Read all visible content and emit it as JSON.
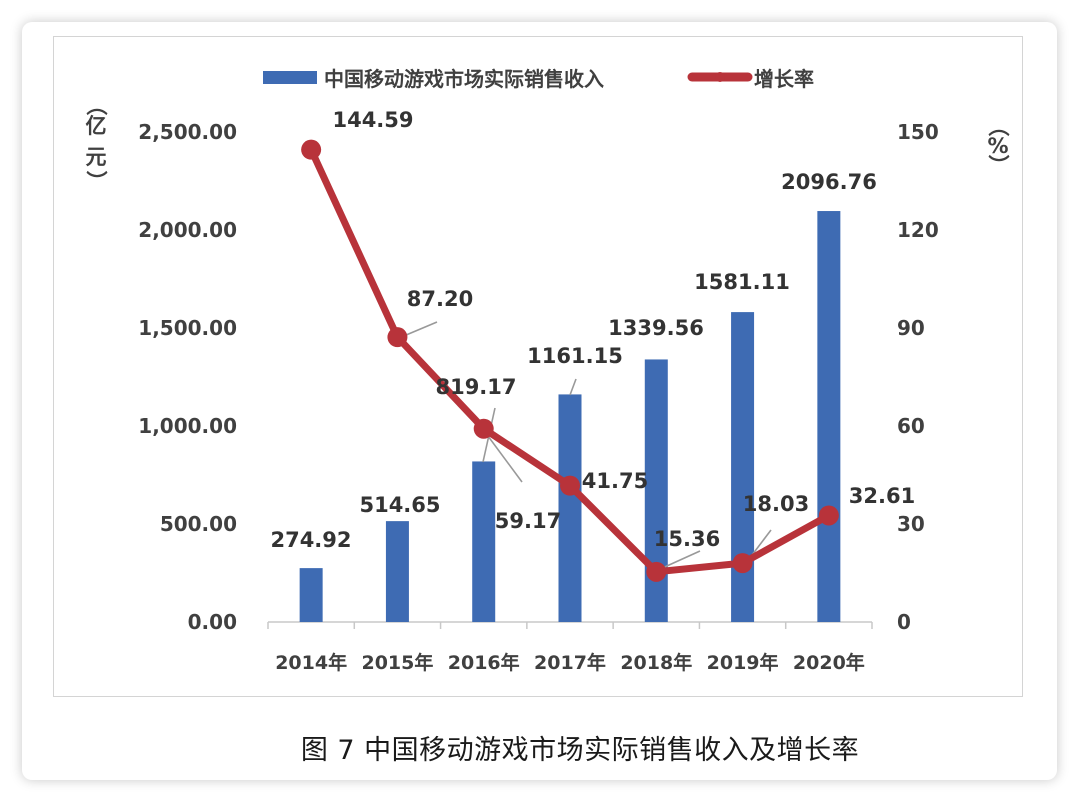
{
  "chart_data": {
    "type": "bar+line",
    "title": "",
    "caption": "图 7  中国移动游戏市场实际销售收入及增长率",
    "categories": [
      "2014年",
      "2015年",
      "2016年",
      "2017年",
      "2018年",
      "2019年",
      "2020年"
    ],
    "series": [
      {
        "name": "中国移动游戏市场实际销售收入",
        "type": "bar",
        "axis": "left",
        "color": "#3E6BB3",
        "values": [
          274.92,
          514.65,
          819.17,
          1161.15,
          1339.56,
          1581.11,
          2096.76
        ],
        "labels": [
          "274.92",
          "514.65",
          "819.17",
          "1161.15",
          "1339.56",
          "1581.11",
          "2096.76"
        ]
      },
      {
        "name": "增长率",
        "type": "line",
        "axis": "right",
        "color": "#B8333A",
        "values": [
          144.59,
          87.2,
          59.17,
          41.75,
          15.36,
          18.03,
          32.61
        ],
        "labels": [
          "144.59",
          "87.20",
          "59.17",
          "41.75",
          "15.36",
          "18.03",
          "32.61"
        ]
      }
    ],
    "ylabel_left": "（亿元）",
    "ylabel_right": "（%）",
    "ylim_left": [
      0,
      2500
    ],
    "ylim_right": [
      0,
      150
    ],
    "yticks_left": [
      "0.00",
      "500.00",
      "1,000.00",
      "1,500.00",
      "2,000.00",
      "2,500.00"
    ],
    "yticks_right": [
      "0",
      "30",
      "60",
      "90",
      "120",
      "150"
    ],
    "grid": false,
    "legend_position": "top"
  },
  "legend": {
    "bar_label": "中国移动游戏市场实际销售收入",
    "line_label": "增长率"
  },
  "axis": {
    "left_unit_chars": [
      "（",
      "亿",
      "元",
      "）"
    ],
    "right_unit_chars": [
      "（",
      "%",
      "）"
    ]
  },
  "caption": "图 7  中国移动游戏市场实际销售收入及增长率"
}
